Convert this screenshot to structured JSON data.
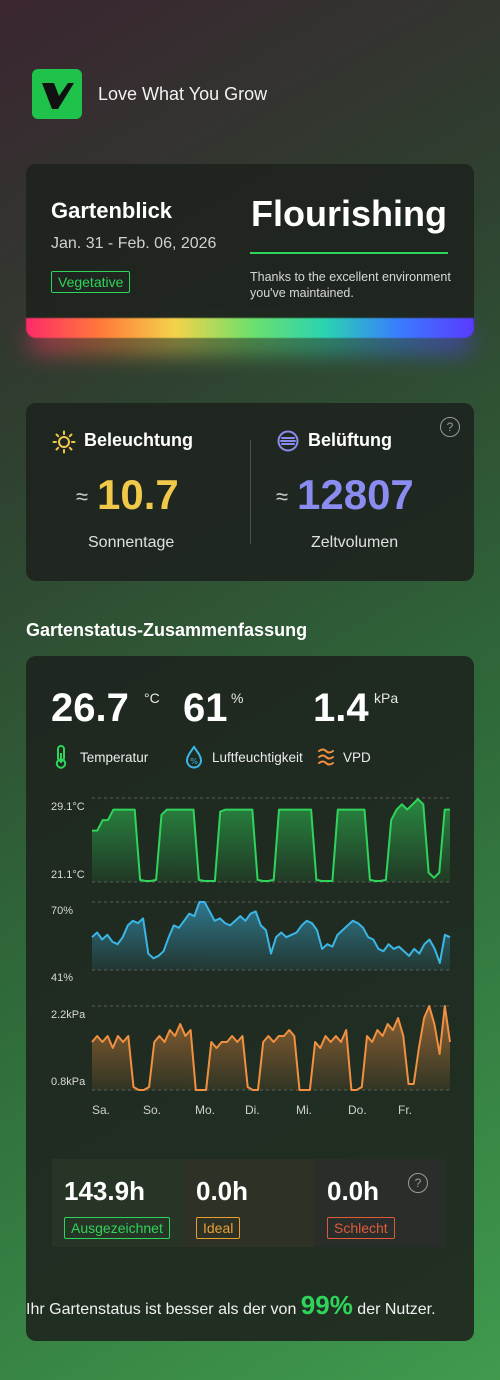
{
  "header": {
    "brand": "Love What You Grow"
  },
  "overview": {
    "title": "Gartenblick",
    "date_range": "Jan. 31 - Feb. 06, 2026",
    "stage": "Vegetative",
    "status": "Flourishing",
    "message": "Thanks to the excellent environment you've maintained."
  },
  "stats": {
    "lighting": {
      "label": "Beleuchtung",
      "approx": "≈",
      "value": "10.7",
      "sub": "Sonnentage",
      "color": "#f0c84a"
    },
    "ventilation": {
      "label": "Belüftung",
      "approx": "≈",
      "value": "12807",
      "sub": "Zeltvolumen",
      "color": "#8a8cf0"
    },
    "help": "?"
  },
  "summary_section": {
    "title": "Gartenstatus-Zusammenfassung",
    "metrics": {
      "temperature": {
        "value": "26.7",
        "unit": "°C",
        "label": "Temperatur"
      },
      "humidity": {
        "value": "61",
        "unit": "%",
        "label": "Luftfeuchtigkeit"
      },
      "vpd": {
        "value": "1.4",
        "unit": "kPa",
        "label": "VPD"
      }
    },
    "days": [
      "Sa.",
      "So.",
      "Mo.",
      "Di.",
      "Mi.",
      "Do.",
      "Fr."
    ],
    "hours": {
      "excellent": {
        "value": "143.9h",
        "label": "Ausgezeichnet",
        "color": "#2fd45a"
      },
      "ideal": {
        "value": "0.0h",
        "label": "Ideal",
        "color": "#e8a030"
      },
      "bad": {
        "value": "0.0h",
        "label": "Schlecht",
        "color": "#e05a3a"
      }
    },
    "footer_before": "Ihr Gartenstatus ist besser als der von",
    "footer_pct": "99%",
    "footer_after": "der Nutzer."
  },
  "chart_data": [
    {
      "type": "area",
      "name_key": "temperature",
      "color": "#2fd45a",
      "ylim": [
        21.1,
        29.1
      ],
      "tick_labels": [
        "29.1°C",
        "21.1°C"
      ],
      "values": [
        26,
        26,
        27,
        27,
        28,
        28,
        28,
        28,
        28,
        21.3,
        21.2,
        21.2,
        21.3,
        27.5,
        28,
        28,
        28,
        28,
        28,
        28,
        21.3,
        21.2,
        21.2,
        21.2,
        27.8,
        28,
        28,
        28,
        28,
        28,
        28,
        21.3,
        21.2,
        21.2,
        21.3,
        28,
        28,
        28,
        28,
        28,
        28,
        28,
        21.3,
        21.2,
        21.2,
        21.2,
        28,
        28,
        28,
        28,
        28,
        28,
        21.3,
        21.2,
        21.2,
        21.3,
        27,
        28,
        28.5,
        28,
        28.5,
        29,
        28.5,
        22,
        21.5,
        22,
        28,
        28
      ]
    },
    {
      "type": "area",
      "name_key": "humidity",
      "color": "#3bb6e6",
      "ylim": [
        41,
        70
      ],
      "tick_labels": [
        "70%",
        "41%"
      ],
      "values": [
        55,
        57,
        54,
        56,
        53,
        52,
        55,
        60,
        62,
        61,
        63,
        48,
        46,
        47,
        49,
        55,
        60,
        59,
        62,
        65,
        64,
        70,
        70,
        66,
        62,
        63,
        61,
        60,
        62,
        64,
        62,
        65,
        66,
        60,
        58,
        48,
        55,
        57,
        55,
        56,
        57,
        60,
        62,
        61,
        58,
        50,
        52,
        51,
        56,
        58,
        60,
        62,
        61,
        59,
        55,
        54,
        50,
        49,
        52,
        50,
        51,
        49,
        47,
        50,
        48,
        52,
        54,
        50,
        44,
        56,
        55
      ]
    },
    {
      "type": "area",
      "name_key": "vpd",
      "color": "#f09040",
      "ylim": [
        0.8,
        2.2
      ],
      "tick_labels": [
        "2.2kPa",
        "0.8kPa"
      ],
      "values": [
        1.6,
        1.7,
        1.6,
        1.7,
        1.5,
        1.7,
        1.6,
        1.7,
        0.85,
        0.8,
        0.8,
        0.85,
        1.6,
        1.7,
        1.6,
        1.8,
        1.7,
        1.9,
        1.7,
        1.8,
        0.8,
        0.8,
        0.8,
        1.6,
        1.5,
        1.6,
        1.6,
        1.7,
        1.6,
        1.7,
        0.85,
        0.8,
        0.8,
        1.6,
        1.7,
        1.6,
        1.7,
        1.7,
        1.8,
        1.7,
        0.8,
        0.8,
        0.8,
        1.6,
        1.5,
        1.7,
        1.6,
        1.7,
        1.6,
        1.8,
        0.8,
        0.8,
        0.85,
        1.7,
        1.6,
        1.8,
        1.7,
        1.9,
        1.8,
        2.0,
        1.7,
        0.9,
        0.9,
        1.5,
        2.0,
        2.2,
        1.9,
        1.4,
        2.2,
        1.6
      ]
    }
  ]
}
